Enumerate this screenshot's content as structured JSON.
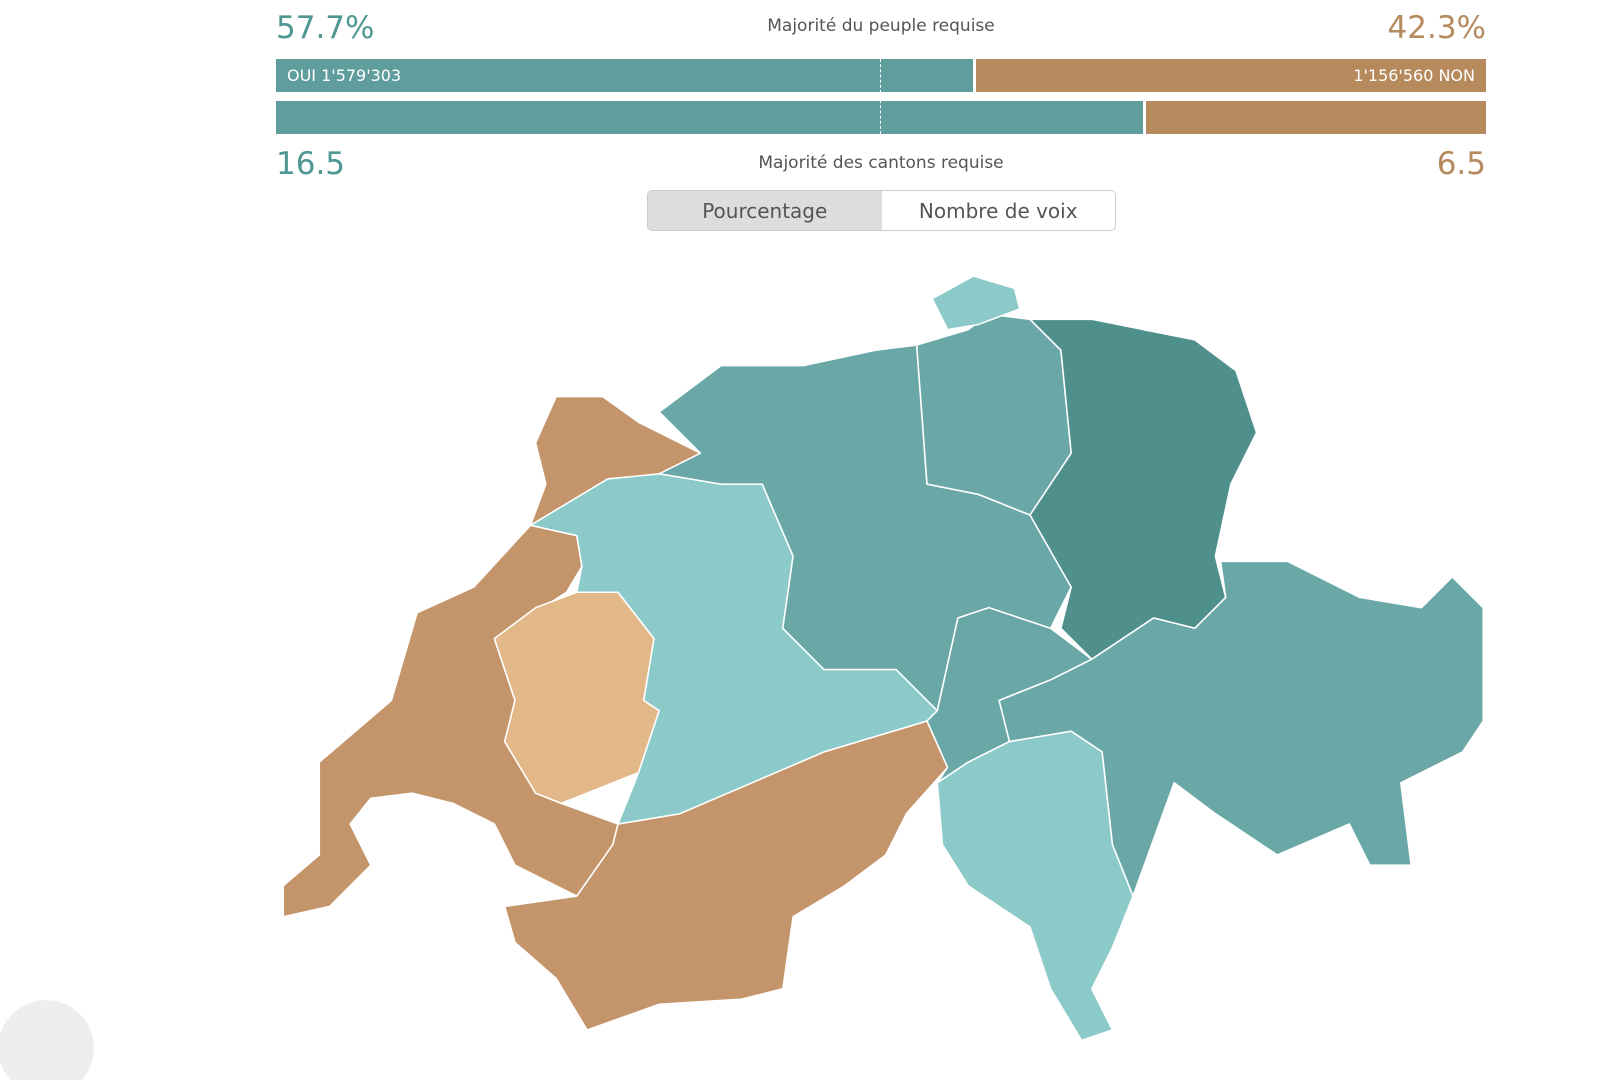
{
  "popular": {
    "yes": {
      "value": 57.7,
      "label": "57.7%"
    },
    "no": {
      "value": 42.3,
      "label": "42.3%"
    },
    "requirement": "Majorité du peuple requise",
    "yes_votes": "OUI 1'579'303",
    "no_votes": "1'156'560 NON"
  },
  "cantons": {
    "yes": 16.5,
    "no": 6.5,
    "requirement": "Majorité des cantons requise"
  },
  "toggle": {
    "options": [
      "Pourcentage",
      "Nombre de voix"
    ],
    "selected": 0
  }
}
